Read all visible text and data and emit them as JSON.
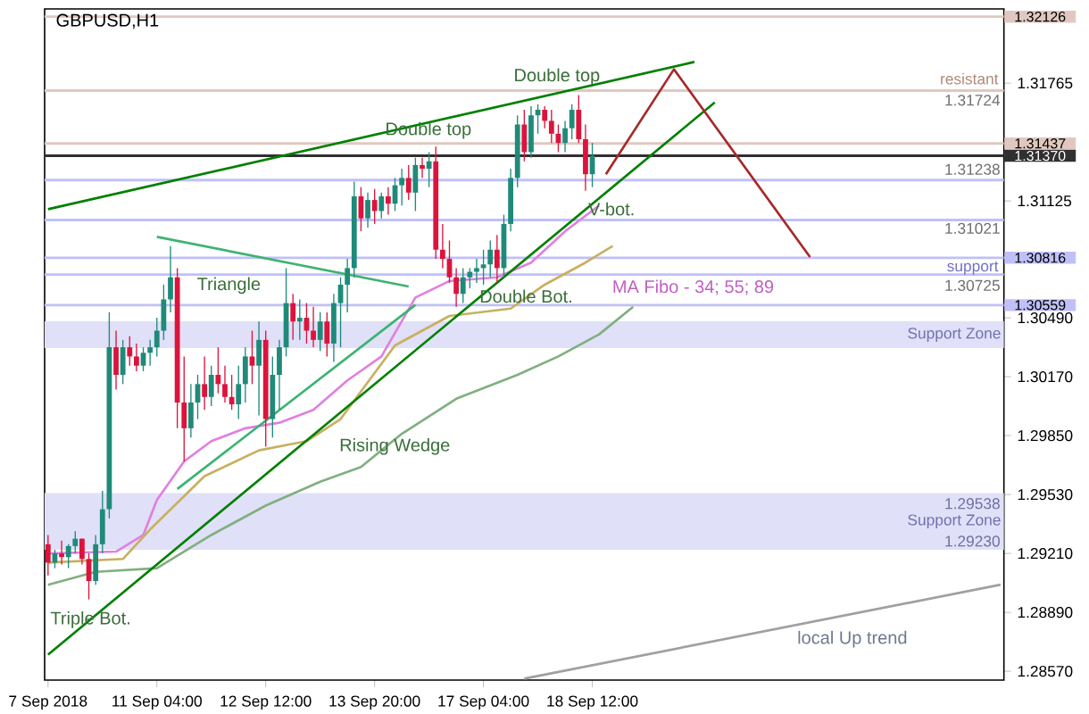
{
  "chart_data": {
    "type": "candlestick",
    "categories": [
      "7 Sep 2018",
      null,
      null,
      null,
      null,
      null,
      null,
      null,
      null,
      null,
      null,
      null,
      null,
      null,
      null,
      null,
      "11 Sep 04:00",
      null,
      null,
      null,
      null,
      null,
      null,
      null,
      null,
      null,
      null,
      null,
      null,
      null,
      null,
      null,
      "12 Sep 12:00",
      null,
      null,
      null,
      null,
      null,
      null,
      null,
      null,
      null,
      null,
      null,
      null,
      null,
      null,
      null,
      "13 Sep 20:00",
      null,
      null,
      null,
      null,
      null,
      null,
      null,
      null,
      null,
      null,
      null,
      null,
      null,
      null,
      null,
      "17 Sep 04:00",
      null,
      null,
      null,
      null,
      null,
      null,
      null,
      null,
      null,
      null,
      null,
      null,
      null,
      null,
      null,
      "18 Sep 12:00",
      null,
      null,
      null,
      null,
      null,
      null,
      null,
      null,
      null,
      null,
      null,
      null,
      null,
      null,
      null,
      null,
      null,
      null,
      null,
      null,
      null,
      null,
      null,
      null,
      null,
      null,
      null,
      null,
      null,
      null,
      null,
      null,
      null,
      null,
      null,
      null,
      null,
      null,
      null,
      null,
      null,
      null,
      null,
      null,
      null,
      null,
      null,
      null,
      null,
      null,
      null,
      null,
      null,
      null,
      null,
      null,
      null,
      null,
      null,
      null
    ],
    "ohlc": [
      [
        1.2926,
        1.2931,
        1.2909,
        1.2916
      ],
      [
        1.2916,
        1.2923,
        1.2913,
        1.2921
      ],
      [
        1.2921,
        1.2928,
        1.2915,
        1.2919
      ],
      [
        1.2919,
        1.2926,
        1.2913,
        1.2925
      ],
      [
        1.2925,
        1.2933,
        1.2921,
        1.2929
      ],
      [
        1.2929,
        1.2929,
        1.2915,
        1.2918
      ],
      [
        1.2918,
        1.2921,
        1.2896,
        1.2906
      ],
      [
        1.2906,
        1.2931,
        1.2904,
        1.2926
      ],
      [
        1.2926,
        1.2955,
        1.2921,
        1.2945
      ],
      [
        1.2945,
        1.3052,
        1.294,
        1.3033
      ],
      [
        1.3033,
        1.3042,
        1.301,
        1.3018
      ],
      [
        1.3018,
        1.3037,
        1.3013,
        1.3033
      ],
      [
        1.3033,
        1.3039,
        1.3023,
        1.3028
      ],
      [
        1.3028,
        1.3035,
        1.302,
        1.3023
      ],
      [
        1.3023,
        1.3033,
        1.302,
        1.303
      ],
      [
        1.303,
        1.3037,
        1.3023,
        1.3033
      ],
      [
        1.3033,
        1.3049,
        1.3028,
        1.3042
      ],
      [
        1.3042,
        1.3067,
        1.3037,
        1.3059
      ],
      [
        1.3059,
        1.3088,
        1.3052,
        1.3071
      ],
      [
        1.3071,
        1.3076,
        1.2989,
        1.3003
      ],
      [
        1.3003,
        1.3028,
        1.2971,
        1.2989
      ],
      [
        1.2989,
        1.3013,
        1.2984,
        1.3003
      ],
      [
        1.3003,
        1.3018,
        1.2994,
        1.3013
      ],
      [
        1.3013,
        1.3028,
        1.2999,
        1.3006
      ],
      [
        1.3006,
        1.3023,
        1.3001,
        1.3018
      ],
      [
        1.3018,
        1.3033,
        1.3008,
        1.3013
      ],
      [
        1.3013,
        1.3023,
        1.3003,
        1.3006
      ],
      [
        1.3006,
        1.3018,
        1.2999,
        1.3002
      ],
      [
        1.3002,
        1.3023,
        1.2994,
        1.3013
      ],
      [
        1.3013,
        1.3033,
        1.3003,
        1.3028
      ],
      [
        1.3028,
        1.3042,
        1.3013,
        1.3023
      ],
      [
        1.3023,
        1.3047,
        1.2996,
        1.3037
      ],
      [
        1.3037,
        1.3042,
        1.2979,
        1.2994
      ],
      [
        1.2994,
        1.3028,
        1.2984,
        1.3018
      ],
      [
        1.3018,
        1.3037,
        1.2999,
        1.3033
      ],
      [
        1.3033,
        1.3076,
        1.3028,
        1.3057
      ],
      [
        1.3057,
        1.3062,
        1.3037,
        1.3047
      ],
      [
        1.3047,
        1.3059,
        1.3037,
        1.3049
      ],
      [
        1.3049,
        1.3057,
        1.3035,
        1.3042
      ],
      [
        1.3042,
        1.3055,
        1.3033,
        1.3037
      ],
      [
        1.3037,
        1.3052,
        1.3031,
        1.3047
      ],
      [
        1.3047,
        1.3052,
        1.3028,
        1.3035
      ],
      [
        1.3035,
        1.3062,
        1.3025,
        1.3057
      ],
      [
        1.3057,
        1.3071,
        1.3033,
        1.3067
      ],
      [
        1.3067,
        1.3081,
        1.3052,
        1.3076
      ],
      [
        1.3076,
        1.3123,
        1.3071,
        1.3115
      ],
      [
        1.3115,
        1.312,
        1.3096,
        1.3103
      ],
      [
        1.3103,
        1.3117,
        1.3098,
        1.3113
      ],
      [
        1.3113,
        1.3119,
        1.31,
        1.3107
      ],
      [
        1.3107,
        1.3117,
        1.3103,
        1.3115
      ],
      [
        1.3115,
        1.312,
        1.3105,
        1.3111
      ],
      [
        1.3111,
        1.3125,
        1.3107,
        1.3121
      ],
      [
        1.3121,
        1.313,
        1.311,
        1.3125
      ],
      [
        1.3125,
        1.3132,
        1.3113,
        1.3117
      ],
      [
        1.3117,
        1.3136,
        1.3107,
        1.3132
      ],
      [
        1.3132,
        1.3136,
        1.3125,
        1.313
      ],
      [
        1.313,
        1.3139,
        1.312,
        1.3134
      ],
      [
        1.3134,
        1.3142,
        1.3081,
        1.3086
      ],
      [
        1.3086,
        1.31,
        1.3076,
        1.3081
      ],
      [
        1.3081,
        1.3091,
        1.3068,
        1.3071
      ],
      [
        1.3071,
        1.3076,
        1.3055,
        1.3062
      ],
      [
        1.3062,
        1.3076,
        1.3057,
        1.3071
      ],
      [
        1.3071,
        1.3076,
        1.3065,
        1.3074
      ],
      [
        1.3074,
        1.3081,
        1.3068,
        1.3076
      ],
      [
        1.3076,
        1.3086,
        1.3067,
        1.3078
      ],
      [
        1.3078,
        1.3091,
        1.3071,
        1.3086
      ],
      [
        1.3086,
        1.3094,
        1.3068,
        1.3076
      ],
      [
        1.3076,
        1.3105,
        1.3071,
        1.31
      ],
      [
        1.31,
        1.313,
        1.3096,
        1.3125
      ],
      [
        1.3125,
        1.3159,
        1.312,
        1.3154
      ],
      [
        1.3154,
        1.3162,
        1.3134,
        1.3139
      ],
      [
        1.3139,
        1.3164,
        1.3136,
        1.3159
      ],
      [
        1.3159,
        1.3165,
        1.3149,
        1.3162
      ],
      [
        1.3162,
        1.3164,
        1.3152,
        1.3156
      ],
      [
        1.3156,
        1.3162,
        1.3144,
        1.3149
      ],
      [
        1.3149,
        1.3154,
        1.3139,
        1.3144
      ],
      [
        1.3144,
        1.3156,
        1.3139,
        1.3152
      ],
      [
        1.3152,
        1.3165,
        1.3146,
        1.3162
      ],
      [
        1.3162,
        1.317,
        1.3144,
        1.3146
      ],
      [
        1.3146,
        1.3154,
        1.3118,
        1.3127
      ],
      [
        1.3127,
        1.3144,
        1.312,
        1.3137
      ],
      null,
      null,
      null,
      null,
      null,
      null,
      null,
      null,
      null,
      null,
      null,
      null,
      null,
      null,
      null,
      null,
      null,
      null,
      null,
      null,
      null,
      null,
      null,
      null,
      null,
      null,
      null,
      null,
      null,
      null,
      null,
      null,
      null,
      null,
      null,
      null,
      null,
      null,
      null,
      null,
      null,
      null,
      null,
      null,
      null,
      null,
      null,
      null,
      null,
      null,
      null,
      null,
      null,
      null,
      null,
      null,
      null,
      null,
      null,
      null
    ],
    "series": [
      {
        "type": "line",
        "color": "#e080e0",
        "values": [
          1.2921,
          null,
          null,
          null,
          null,
          null,
          null,
          null,
          null,
          null,
          1.2922,
          null,
          null,
          null,
          1.2931,
          null,
          1.295,
          null,
          null,
          null,
          1.2971,
          null,
          null,
          null,
          1.2982,
          null,
          null,
          null,
          null,
          1.2989,
          null,
          null,
          null,
          null,
          1.2992,
          null,
          null,
          null,
          null,
          1.2999,
          null,
          null,
          null,
          null,
          1.3015,
          null,
          null,
          null,
          null,
          1.3028,
          null,
          null,
          null,
          null,
          1.306,
          null,
          null,
          null,
          null,
          1.3069,
          null,
          null,
          null,
          null,
          null,
          null,
          1.3071,
          null,
          null,
          null,
          null,
          1.3079,
          null,
          null,
          null,
          null,
          1.3096,
          null,
          null,
          null,
          null,
          1.311,
          null,
          null,
          null,
          null,
          null,
          null,
          null,
          null,
          null,
          null,
          null,
          null,
          null,
          null,
          null,
          null,
          null,
          null,
          null,
          null,
          null,
          null,
          null,
          null,
          null,
          null,
          null,
          null,
          null,
          null,
          null,
          null,
          null,
          null,
          null,
          null,
          null,
          null,
          null,
          null,
          null,
          null,
          null,
          null,
          null,
          null,
          null,
          null,
          null,
          null,
          null,
          null,
          null,
          null,
          null,
          null,
          null,
          null,
          null
        ]
      },
      {
        "type": "line",
        "color": "#c8b060",
        "values": [
          1.2916,
          null,
          null,
          null,
          null,
          null,
          null,
          null,
          null,
          null,
          null,
          1.2918,
          null,
          null,
          null,
          1.2934,
          null,
          null,
          null,
          null,
          null,
          null,
          null,
          1.2963,
          null,
          null,
          null,
          null,
          null,
          null,
          null,
          1.2977,
          null,
          null,
          null,
          null,
          null,
          null,
          1.2982,
          null,
          null,
          null,
          null,
          1.2994,
          null,
          null,
          null,
          null,
          null,
          null,
          null,
          1.3034,
          null,
          null,
          null,
          null,
          null,
          null,
          null,
          1.305,
          null,
          null,
          null,
          null,
          null,
          null,
          null,
          null,
          1.3054,
          null,
          null,
          null,
          null,
          1.3067,
          null,
          null,
          null,
          null,
          null,
          1.3079,
          null,
          null,
          null,
          1.3088,
          null,
          null,
          null,
          null,
          null,
          null,
          null,
          null,
          null,
          null,
          null,
          null,
          null,
          null,
          null,
          null,
          null,
          null,
          null,
          null,
          null,
          null,
          null,
          null,
          null,
          null,
          null,
          null,
          null,
          null,
          null,
          null,
          null,
          null,
          null,
          null,
          null,
          null,
          null,
          null,
          null,
          null,
          null,
          null,
          null,
          null,
          null,
          null,
          null,
          null,
          null,
          null,
          null,
          null,
          null,
          null,
          null
        ]
      },
      {
        "type": "line",
        "color": "#80b080",
        "values": [
          1.2904,
          null,
          null,
          null,
          null,
          null,
          null,
          1.2911,
          null,
          null,
          null,
          null,
          null,
          null,
          null,
          null,
          1.2913,
          null,
          null,
          null,
          null,
          null,
          null,
          null,
          1.2931,
          null,
          null,
          null,
          null,
          null,
          null,
          null,
          1.2947,
          null,
          null,
          null,
          null,
          null,
          null,
          null,
          1.296,
          null,
          null,
          null,
          null,
          null,
          1.2968,
          null,
          null,
          null,
          null,
          null,
          1.2986,
          null,
          null,
          null,
          null,
          null,
          null,
          null,
          1.3005,
          null,
          null,
          null,
          null,
          null,
          null,
          null,
          null,
          1.3018,
          null,
          null,
          null,
          null,
          null,
          1.3028,
          null,
          null,
          null,
          null,
          null,
          1.304,
          null,
          null,
          null,
          null,
          1.3055,
          null,
          null,
          null,
          null,
          null,
          null,
          null,
          null,
          null,
          null,
          null,
          null,
          null,
          null,
          null,
          null,
          null,
          null,
          null,
          null,
          null,
          null,
          null,
          null,
          null,
          null,
          null,
          null,
          null,
          null,
          null,
          null,
          null,
          null,
          null,
          null,
          null,
          null,
          null,
          null,
          null,
          null,
          null,
          null,
          null,
          null,
          null,
          null,
          null,
          null,
          null,
          null,
          null,
          null
        ]
      },
      {
        "type": "line",
        "color": "#008000",
        "values": [
          1.3108,
          null,
          null,
          null,
          null,
          null,
          null,
          null,
          null,
          null,
          null,
          null,
          null,
          null,
          null,
          null,
          null,
          null,
          null,
          null,
          null,
          null,
          null,
          null,
          null,
          null,
          null,
          null,
          null,
          null,
          null,
          null,
          null,
          null,
          null,
          null,
          null,
          null,
          null,
          null,
          null,
          null,
          null,
          null,
          null,
          null,
          null,
          null,
          null,
          null,
          null,
          null,
          null,
          null,
          null,
          null,
          null,
          null,
          null,
          null,
          null,
          null,
          null,
          null,
          null,
          null,
          null,
          null,
          null,
          null,
          null,
          null,
          null,
          null,
          null,
          null,
          null,
          null,
          null,
          null,
          null,
          null,
          null,
          null,
          null,
          null,
          null,
          null,
          null,
          null,
          null,
          null,
          null,
          null,
          null,
          1.3188,
          null,
          null,
          null,
          null,
          null,
          null,
          null,
          null,
          null,
          null,
          null,
          null,
          null,
          null,
          null,
          null,
          null,
          null,
          null,
          null,
          null,
          null,
          null,
          null,
          null,
          null,
          null,
          null,
          null,
          null,
          null,
          null,
          null,
          null,
          null,
          null,
          null,
          null,
          null,
          null,
          null,
          null,
          null,
          null,
          null
        ]
      },
      {
        "type": "line",
        "color": "#008000",
        "values": [
          1.2866,
          null,
          null,
          null,
          null,
          null,
          null,
          null,
          null,
          null,
          null,
          null,
          null,
          null,
          null,
          null,
          null,
          null,
          null,
          null,
          null,
          null,
          null,
          null,
          null,
          null,
          null,
          null,
          null,
          null,
          null,
          null,
          null,
          null,
          null,
          null,
          null,
          null,
          null,
          null,
          null,
          null,
          null,
          null,
          null,
          null,
          null,
          null,
          null,
          null,
          null,
          null,
          null,
          null,
          null,
          null,
          null,
          null,
          null,
          null,
          null,
          null,
          null,
          null,
          null,
          null,
          null,
          null,
          null,
          null,
          null,
          null,
          null,
          null,
          null,
          null,
          null,
          null,
          null,
          null,
          null,
          null,
          null,
          null,
          null,
          null,
          null,
          null,
          null,
          null,
          null,
          null,
          null,
          null,
          null,
          null,
          null,
          null,
          1.3166,
          null,
          null,
          null,
          null,
          null,
          null,
          null,
          null,
          null,
          null,
          null,
          null,
          null,
          null,
          null,
          null,
          null,
          null,
          null,
          null,
          null,
          null,
          null,
          null,
          null,
          null,
          null,
          null,
          null,
          null,
          null,
          null,
          null,
          null,
          null,
          null,
          null,
          null,
          null,
          null,
          null,
          null
        ]
      },
      {
        "type": "line",
        "color": "#3cb371",
        "values": [
          null,
          null,
          null,
          null,
          null,
          null,
          null,
          null,
          null,
          null,
          null,
          null,
          null,
          null,
          null,
          null,
          1.3093,
          null,
          null,
          null,
          null,
          null,
          null,
          null,
          null,
          null,
          null,
          null,
          null,
          null,
          null,
          null,
          null,
          null,
          null,
          null,
          null,
          null,
          null,
          null,
          null,
          null,
          null,
          null,
          null,
          null,
          null,
          null,
          null,
          null,
          null,
          null,
          null,
          1.3066,
          null,
          null,
          null,
          null,
          null,
          null,
          null,
          null,
          null,
          null,
          null,
          null,
          null,
          null,
          null,
          null,
          null,
          null,
          null,
          null,
          null,
          null,
          null,
          null,
          null,
          null,
          null,
          null,
          null,
          null,
          null,
          null,
          null,
          null,
          null,
          null,
          null,
          null,
          null,
          null,
          null,
          null,
          null,
          null,
          null,
          null,
          null,
          null,
          null,
          null,
          null,
          null,
          null,
          null,
          null,
          null,
          null,
          null,
          null,
          null,
          null,
          null,
          null,
          null,
          null,
          null,
          null,
          null,
          null,
          null,
          null,
          null,
          null,
          null,
          null,
          null,
          null,
          null,
          null,
          null,
          null,
          null,
          null,
          null,
          null,
          null,
          null
        ]
      },
      {
        "type": "line",
        "color": "#3cb371",
        "values": [
          null,
          null,
          null,
          null,
          null,
          null,
          null,
          null,
          null,
          null,
          null,
          null,
          null,
          null,
          null,
          null,
          null,
          null,
          null,
          1.2956,
          null,
          null,
          null,
          null,
          null,
          null,
          null,
          null,
          null,
          null,
          null,
          null,
          null,
          null,
          null,
          null,
          null,
          null,
          null,
          null,
          null,
          null,
          null,
          null,
          null,
          null,
          null,
          null,
          null,
          null,
          null,
          null,
          null,
          null,
          1.3056,
          null,
          null,
          null,
          null,
          null,
          null,
          null,
          null,
          null,
          null,
          null,
          null,
          null,
          null,
          null,
          null,
          null,
          null,
          null,
          null,
          null,
          null,
          null,
          null,
          null,
          null,
          null,
          null,
          null,
          null,
          null,
          null,
          null,
          null,
          null,
          null,
          null,
          null,
          null,
          null,
          null,
          null,
          null,
          null,
          null,
          null,
          null,
          null,
          null,
          null,
          null,
          null,
          null,
          null,
          null,
          null,
          null,
          null,
          null,
          null,
          null,
          null,
          null,
          null,
          null,
          null,
          null,
          null,
          null,
          null,
          null,
          null,
          null,
          null,
          null,
          null,
          null,
          null,
          null,
          null,
          null,
          null,
          null,
          null,
          null,
          null
        ]
      },
      {
        "type": "line",
        "color": "#a52a2a",
        "values": [
          null,
          null,
          null,
          null,
          null,
          null,
          null,
          null,
          null,
          null,
          null,
          null,
          null,
          null,
          null,
          null,
          null,
          null,
          null,
          null,
          null,
          null,
          null,
          null,
          null,
          null,
          null,
          null,
          null,
          null,
          null,
          null,
          null,
          null,
          null,
          null,
          null,
          null,
          null,
          null,
          null,
          null,
          null,
          null,
          null,
          null,
          null,
          null,
          null,
          null,
          null,
          null,
          null,
          null,
          null,
          null,
          null,
          null,
          null,
          null,
          null,
          null,
          null,
          null,
          null,
          null,
          null,
          null,
          null,
          null,
          null,
          null,
          null,
          null,
          null,
          null,
          null,
          null,
          null,
          null,
          null,
          null,
          1.3127,
          null,
          null,
          null,
          null,
          null,
          null,
          null,
          null,
          null,
          1.3184,
          null,
          null,
          null,
          null,
          null,
          null,
          null,
          null,
          null,
          null,
          null,
          null,
          null,
          null,
          null,
          null,
          null,
          null,
          null,
          1.3082,
          null,
          null,
          null,
          null,
          null,
          null,
          null,
          null,
          null,
          null,
          null,
          null,
          null,
          null,
          null,
          null,
          null,
          null,
          null,
          null,
          null,
          null,
          null,
          null,
          null,
          null,
          null,
          null
        ]
      },
      {
        "type": "line",
        "color": "#a0a0a0",
        "values": [
          null,
          null,
          null,
          null,
          null,
          null,
          null,
          null,
          null,
          null,
          null,
          null,
          null,
          null,
          null,
          null,
          null,
          null,
          null,
          null,
          null,
          null,
          null,
          null,
          null,
          null,
          null,
          null,
          null,
          null,
          null,
          null,
          null,
          null,
          null,
          null,
          null,
          null,
          null,
          null,
          null,
          null,
          null,
          null,
          null,
          null,
          null,
          null,
          null,
          null,
          null,
          null,
          null,
          null,
          null,
          null,
          null,
          null,
          null,
          null,
          null,
          null,
          null,
          null,
          null,
          null,
          null,
          null,
          null,
          null,
          1.2853,
          null,
          null,
          null,
          null,
          null,
          null,
          null,
          null,
          null,
          null,
          null,
          null,
          null,
          null,
          null,
          null,
          null,
          null,
          null,
          null,
          null,
          null,
          null,
          null,
          null,
          null,
          null,
          null,
          null,
          null,
          null,
          null,
          null,
          null,
          null,
          null,
          null,
          null,
          null,
          null,
          null,
          null,
          null,
          null,
          null,
          null,
          null,
          null,
          null,
          null,
          null,
          null,
          null,
          null,
          null,
          null,
          null,
          null,
          null,
          null,
          null,
          null,
          null,
          null,
          null,
          null,
          null,
          null,
          null,
          1.2904
        ]
      }
    ],
    "ylim": [
      1.28522,
      1.32168
    ],
    "yticks": [
      {
        "value": 1.2857,
        "label": "1.28570"
      },
      {
        "value": 1.2889,
        "label": "1.28890"
      },
      {
        "value": 1.2921,
        "label": "1.29210"
      },
      {
        "value": 1.2953,
        "label": "1.29530"
      },
      {
        "value": 1.2985,
        "label": "1.29850"
      },
      {
        "value": 1.3017,
        "label": "1.30170"
      },
      {
        "value": 1.3049,
        "label": "1.30490"
      },
      {
        "value": 1.31125,
        "label": "1.31125"
      },
      {
        "value": 1.31765,
        "label": "1.31765"
      }
    ],
    "ref_lines": [
      {
        "axis": "y",
        "value": 1.32126,
        "label": "1.32126",
        "color": "#e0c8c0"
      },
      {
        "axis": "y",
        "value": 1.31724,
        "color": "#e0c8c0"
      },
      {
        "axis": "y",
        "value": 1.31437,
        "label": "1.31437",
        "color": "#e0c8c0"
      },
      {
        "axis": "y",
        "value": 1.3137,
        "label": "1.31370",
        "color": "#303030"
      },
      {
        "axis": "y",
        "value": 1.31238,
        "color": "#c0c0f8"
      },
      {
        "axis": "y",
        "value": 1.31021,
        "color": "#c0c0f8"
      },
      {
        "axis": "y",
        "value": 1.30816,
        "label": "1.30816",
        "color": "#c0c0f8"
      },
      {
        "axis": "y",
        "value": 1.30725,
        "color": "#c0c0f8"
      },
      {
        "axis": "y",
        "value": 1.30559,
        "label": "1.30559",
        "color": "#c0c0f8"
      }
    ],
    "bands": [
      {
        "axis": "y",
        "from": 1.30325,
        "to": 1.30471,
        "label": "Support Zone",
        "color": "#e0e0f8"
      },
      {
        "axis": "y",
        "from": 1.2923,
        "to": 1.29538,
        "label": "Support Zone",
        "color": "#e0e0f8"
      }
    ],
    "annotations": [
      "GBPUSD,H1",
      "Double top",
      "Double top",
      "Triangle",
      "Rising Wedge",
      "Double Bot.",
      "V-bot.",
      "Triple Bot.",
      "MA Fibo - 34; 55; 89",
      "local Up trend",
      "resistant",
      "1.31724",
      "1.31238",
      "1.31021",
      "support",
      "1.30725",
      "1.29538",
      "1.29230"
    ]
  }
}
